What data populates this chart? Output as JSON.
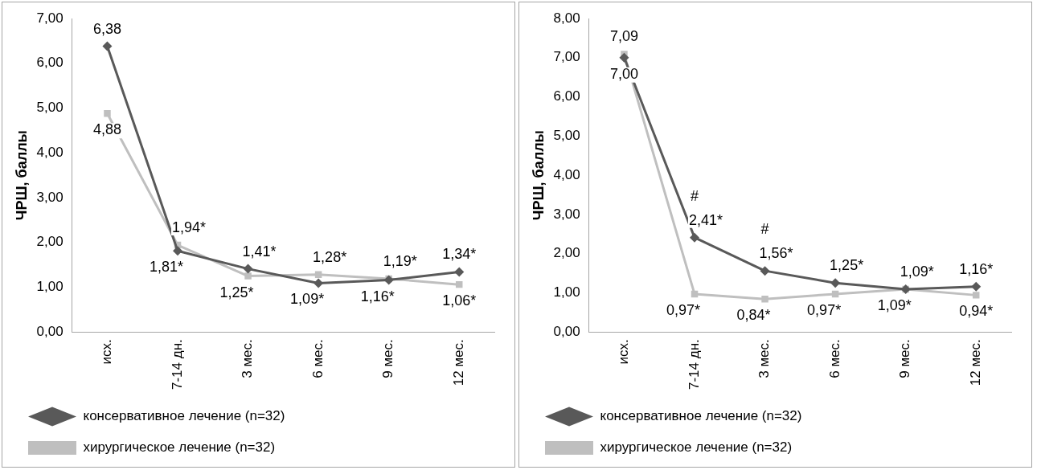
{
  "chart_data": [
    {
      "type": "line",
      "ylabel": "ЧРШ, баллы",
      "categories": [
        "исх.",
        "7-14 дн.",
        "3 мес.",
        "6 мес.",
        "9 мес.",
        "12 мес."
      ],
      "series": [
        {
          "name": "консервативное лечение (n=32)",
          "color": "#595959",
          "marker": "diamond",
          "values": [
            6.38,
            1.81,
            1.41,
            1.09,
            1.16,
            1.34
          ],
          "value_labels": [
            "6,38",
            "1,81*",
            "1,41*",
            "1,09*",
            "1,16*",
            "1,34*"
          ]
        },
        {
          "name": "хирургическое лечение (n=32)",
          "color": "#bfbfbf",
          "marker": "square",
          "values": [
            4.88,
            1.94,
            1.25,
            1.28,
            1.19,
            1.06
          ],
          "value_labels": [
            "4,88",
            "1,94*",
            "1,25*",
            "1,28*",
            "1,19*",
            "1,06*"
          ]
        }
      ],
      "ylim": [
        0,
        7
      ],
      "yticks": [
        {
          "value": 0,
          "label": "0,00"
        },
        {
          "value": 1,
          "label": "1,00"
        },
        {
          "value": 2,
          "label": "2,00"
        },
        {
          "value": 3,
          "label": "3,00"
        },
        {
          "value": 4,
          "label": "4,00"
        },
        {
          "value": 5,
          "label": "5,00"
        },
        {
          "value": 6,
          "label": "6,00"
        },
        {
          "value": 7,
          "label": "7,00"
        }
      ],
      "grid": false,
      "legend": "bottom",
      "line_style": "solid"
    },
    {
      "type": "line",
      "ylabel": "ЧРШ, баллы",
      "categories": [
        "исх.",
        "7-14 дн.",
        "3 мес.",
        "6 мес.",
        "9 мес.",
        "12 мес."
      ],
      "series": [
        {
          "name": "консервативное лечение (n=32)",
          "color": "#595959",
          "marker": "diamond",
          "values": [
            7.0,
            2.41,
            1.56,
            1.25,
            1.09,
            1.16
          ],
          "value_labels": [
            "7,00",
            "2,41*",
            "1,56*",
            "1,25*",
            "1,09*",
            "1,16*"
          ]
        },
        {
          "name": "хирургическое лечение (n=32)",
          "color": "#bfbfbf",
          "marker": "square",
          "values": [
            7.09,
            0.97,
            0.84,
            0.97,
            1.09,
            0.94
          ],
          "value_labels": [
            "7,09",
            "0,97*",
            "0,84*",
            "0,97*",
            "1,09*",
            "0,94*"
          ]
        }
      ],
      "ylim": [
        0,
        8
      ],
      "yticks": [
        {
          "value": 0,
          "label": "0,00"
        },
        {
          "value": 1,
          "label": "1,00"
        },
        {
          "value": 2,
          "label": "2,00"
        },
        {
          "value": 3,
          "label": "3,00"
        },
        {
          "value": 4,
          "label": "4,00"
        },
        {
          "value": 5,
          "label": "5,00"
        },
        {
          "value": 6,
          "label": "6,00"
        },
        {
          "value": 7,
          "label": "7,00"
        },
        {
          "value": 8,
          "label": "8,00"
        }
      ],
      "annotations": [
        {
          "text": "#",
          "x": "7-14 дн.",
          "y": 2.41
        },
        {
          "text": "#",
          "x": "3 мес.",
          "y": 1.56
        }
      ],
      "grid": false,
      "legend": "bottom",
      "line_style": "solid"
    }
  ]
}
